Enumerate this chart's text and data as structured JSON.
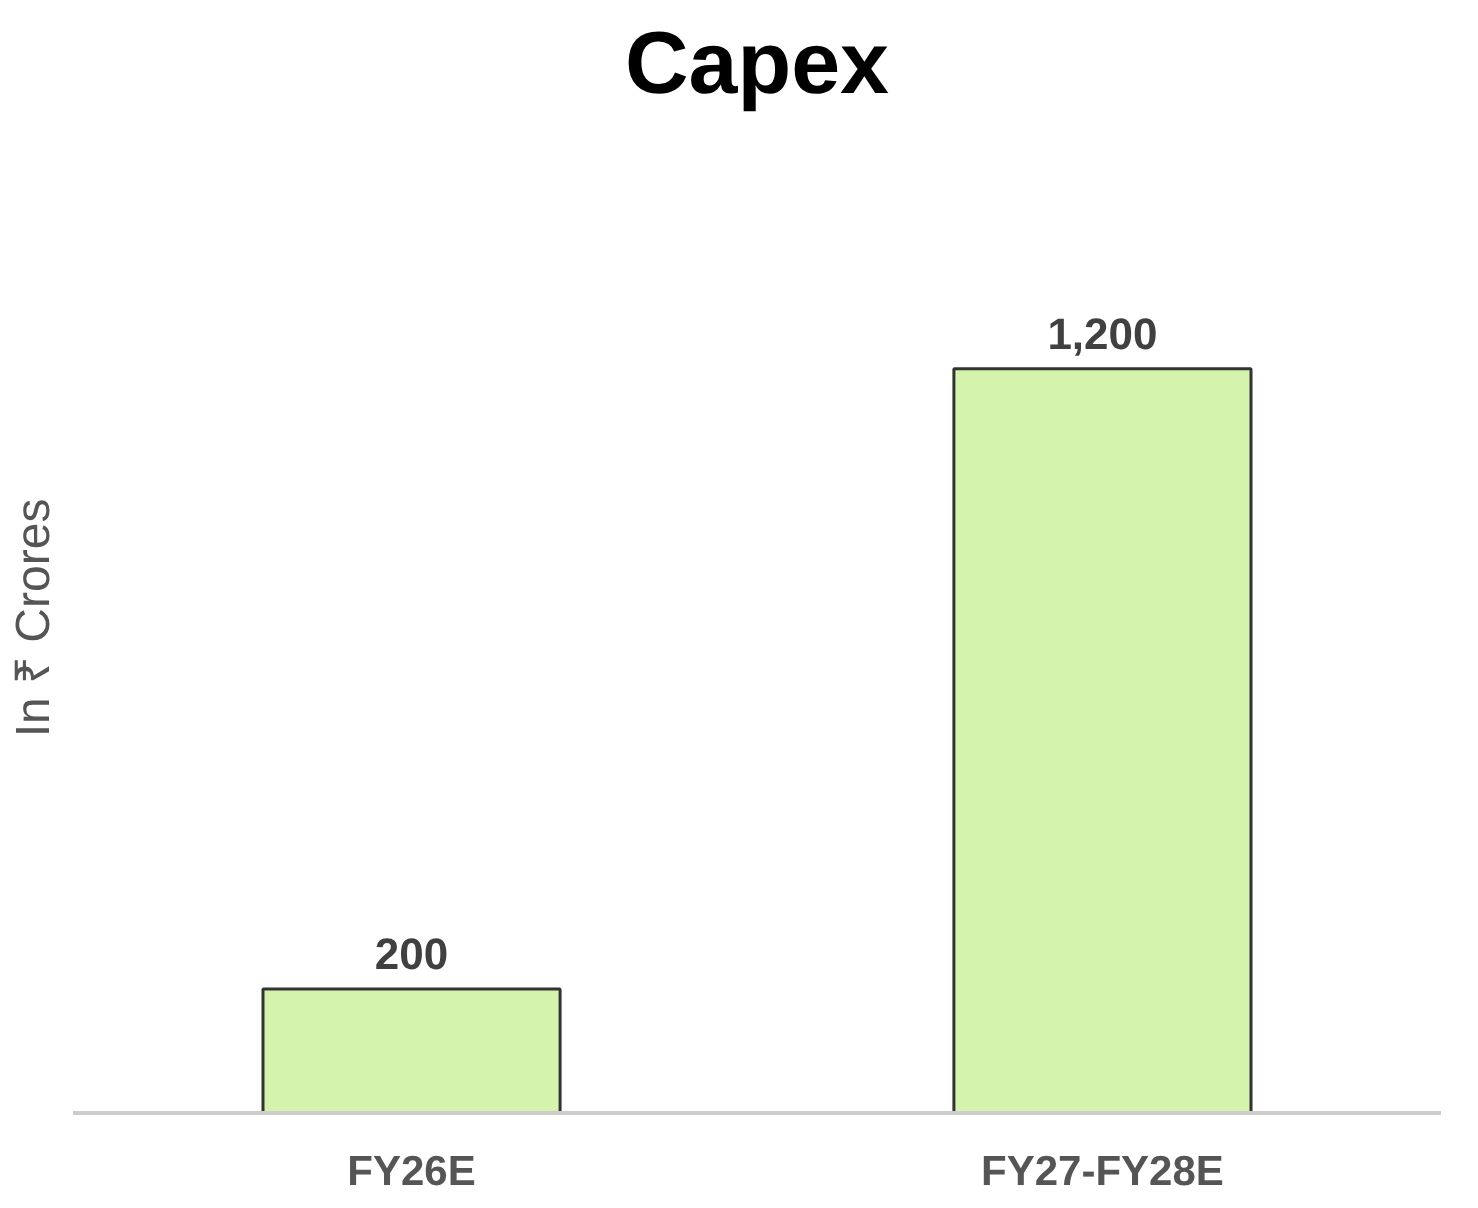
{
  "chart_data": {
    "type": "bar",
    "title": "Capex",
    "ylabel": "In ₹ Crores",
    "categories": [
      "FY26E",
      "FY27-FY28E"
    ],
    "values": [
      200,
      1200
    ],
    "value_labels": [
      "200",
      "1,200"
    ],
    "color": "#d4f4ad",
    "tick_labels": "x"
  }
}
